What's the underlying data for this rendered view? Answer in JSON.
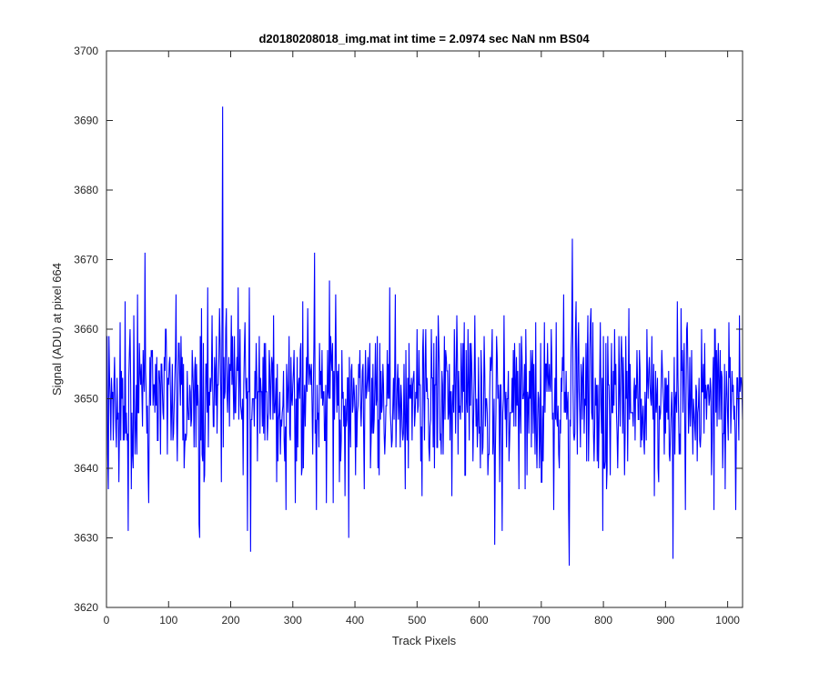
{
  "chart_data": {
    "type": "line",
    "title": "d20180208018_img.mat int time = 2.0974 sec  NaN nm BS04",
    "xlabel": "Track Pixels",
    "ylabel": "Signal (ADU) at pixel 664",
    "xlim": [
      0,
      1024
    ],
    "ylim": [
      3620,
      3700
    ],
    "xticks": [
      0,
      100,
      200,
      300,
      400,
      500,
      600,
      700,
      800,
      900,
      1000
    ],
    "yticks": [
      3620,
      3630,
      3640,
      3650,
      3660,
      3670,
      3680,
      3690,
      3700
    ],
    "grid": false,
    "legend": "none",
    "series_color": "#0000ff",
    "n_points": 1024,
    "mean": 3650,
    "notable_points": [
      {
        "x": 187,
        "y": 3692
      },
      {
        "x": 232,
        "y": 3628
      },
      {
        "x": 750,
        "y": 3673
      },
      {
        "x": 745,
        "y": 3626
      },
      {
        "x": 912,
        "y": 3627
      },
      {
        "x": 62,
        "y": 3671
      },
      {
        "x": 335,
        "y": 3671
      },
      {
        "x": 150,
        "y": 3630
      },
      {
        "x": 35,
        "y": 3631
      },
      {
        "x": 625,
        "y": 3629
      },
      {
        "x": 390,
        "y": 3630
      }
    ]
  }
}
